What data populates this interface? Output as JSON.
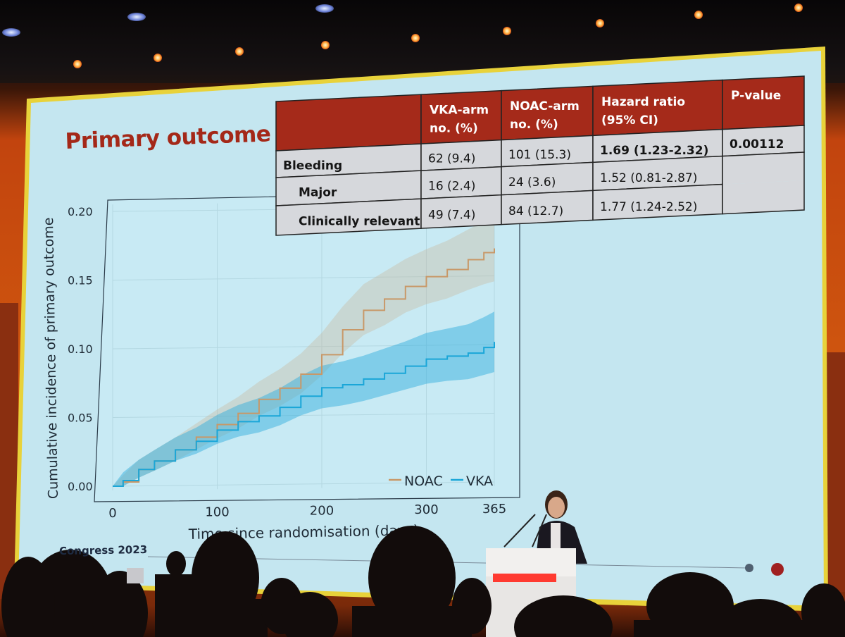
{
  "slide": {
    "title": "Primary outcome",
    "footer": "Congress 2023"
  },
  "table": {
    "headers": [
      "",
      "VKA-arm no. (%)",
      "NOAC-arm no. (%)",
      "Hazard ratio (95% CI)",
      "P-value"
    ],
    "header_lines": [
      [
        ""
      ],
      [
        "VKA-arm",
        "no. (%)"
      ],
      [
        "NOAC-arm",
        "no. (%)"
      ],
      [
        "Hazard ratio",
        "(95% CI)"
      ],
      [
        "P-value"
      ]
    ],
    "rows": [
      {
        "label": "Bleeding",
        "vka": "62 (9.4)",
        "noac": "101 (15.3)",
        "hr": "1.69 (1.23-2.32)",
        "p": "0.00112",
        "bold_hr": true
      },
      {
        "label": "Major",
        "vka": "16 (2.4)",
        "noac": "24 (3.6)",
        "hr": "1.52 (0.81-2.87)",
        "p": ""
      },
      {
        "label": "Clinically relevant",
        "vka": "49 (7.4)",
        "noac": "84 (12.7)",
        "hr": "1.77 (1.24-2.52)",
        "p": ""
      }
    ],
    "header_color": "#a52a1a",
    "row_color": "#d6d8dc"
  },
  "chart_data": {
    "type": "line",
    "xlabel": "Time since randomisation (days)",
    "ylabel": "Cumulative incidence of primary outcome",
    "x_ticks": [
      0,
      100,
      200,
      300,
      365
    ],
    "y_ticks": [
      "0.00",
      "0.05",
      "0.10",
      "0.15",
      "0.20"
    ],
    "xlim": [
      0,
      365
    ],
    "ylim": [
      0,
      0.2
    ],
    "legend_position": "bottom-right",
    "series": [
      {
        "name": "NOAC",
        "color": "#c89868",
        "x": [
          0,
          10,
          25,
          40,
          60,
          80,
          100,
          120,
          140,
          160,
          180,
          200,
          220,
          240,
          260,
          280,
          300,
          320,
          340,
          355,
          365
        ],
        "y": [
          0.0,
          0.003,
          0.012,
          0.018,
          0.026,
          0.035,
          0.044,
          0.052,
          0.062,
          0.07,
          0.08,
          0.094,
          0.112,
          0.126,
          0.134,
          0.143,
          0.15,
          0.155,
          0.162,
          0.167,
          0.17
        ],
        "ci_low": [
          0.0,
          0.0,
          0.006,
          0.011,
          0.018,
          0.026,
          0.034,
          0.041,
          0.05,
          0.057,
          0.066,
          0.079,
          0.095,
          0.108,
          0.115,
          0.124,
          0.13,
          0.134,
          0.14,
          0.144,
          0.146
        ],
        "ci_high": [
          0.0,
          0.008,
          0.019,
          0.026,
          0.035,
          0.045,
          0.055,
          0.064,
          0.075,
          0.084,
          0.095,
          0.11,
          0.129,
          0.145,
          0.154,
          0.163,
          0.17,
          0.176,
          0.184,
          0.19,
          0.194
        ]
      },
      {
        "name": "VKA",
        "color": "#1aa6d8",
        "x": [
          0,
          10,
          25,
          40,
          60,
          80,
          100,
          120,
          140,
          160,
          180,
          200,
          220,
          240,
          260,
          280,
          300,
          320,
          340,
          355,
          365
        ],
        "y": [
          0.0,
          0.004,
          0.012,
          0.018,
          0.026,
          0.032,
          0.04,
          0.046,
          0.05,
          0.056,
          0.064,
          0.07,
          0.072,
          0.076,
          0.08,
          0.085,
          0.09,
          0.092,
          0.094,
          0.098,
          0.102
        ],
        "ci_low": [
          0.0,
          0.0,
          0.006,
          0.011,
          0.018,
          0.023,
          0.03,
          0.035,
          0.038,
          0.043,
          0.05,
          0.055,
          0.057,
          0.06,
          0.064,
          0.068,
          0.072,
          0.074,
          0.075,
          0.078,
          0.08
        ],
        "ci_high": [
          0.0,
          0.01,
          0.019,
          0.026,
          0.035,
          0.042,
          0.051,
          0.058,
          0.063,
          0.07,
          0.079,
          0.086,
          0.089,
          0.093,
          0.098,
          0.103,
          0.109,
          0.112,
          0.115,
          0.12,
          0.124
        ]
      }
    ]
  },
  "colors": {
    "slide_bg": "#c4e6f0",
    "title": "#a42818",
    "stage_orange": "#d0570f"
  }
}
